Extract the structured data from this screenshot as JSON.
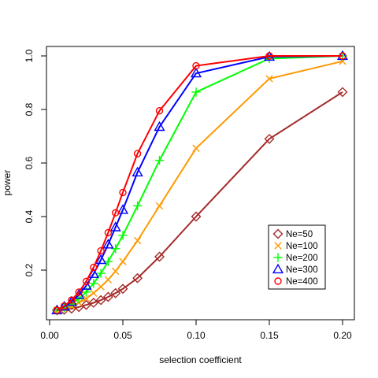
{
  "chart_data": {
    "type": "line",
    "xlabel": "selection coefficient",
    "ylabel": "power",
    "xlim": [
      0.0,
      0.2
    ],
    "ylim": [
      0.05,
      1.0
    ],
    "x_ticks": [
      0.0,
      0.05,
      0.1,
      0.15,
      0.2
    ],
    "x_tick_labels": [
      "0.00",
      "0.05",
      "0.10",
      "0.15",
      "0.20"
    ],
    "y_ticks": [
      0.2,
      0.4,
      0.6,
      0.8,
      1.0
    ],
    "y_tick_labels": [
      "0.2",
      "0.4",
      "0.6",
      "0.8",
      "1.0"
    ],
    "grid": false,
    "legend_position": "bottom-right",
    "x": [
      0.005,
      0.01,
      0.015,
      0.02,
      0.025,
      0.03,
      0.035,
      0.04,
      0.045,
      0.05,
      0.06,
      0.075,
      0.1,
      0.15,
      0.2
    ],
    "series": [
      {
        "name": "Ne=50",
        "color": "#a52a2a",
        "marker": "diamond",
        "values": [
          0.05,
          0.052,
          0.056,
          0.062,
          0.07,
          0.078,
          0.088,
          0.1,
          0.114,
          0.13,
          0.17,
          0.25,
          0.4,
          0.69,
          0.865
        ]
      },
      {
        "name": "Ne=100",
        "color": "#ff9900",
        "marker": "x",
        "values": [
          0.05,
          0.056,
          0.066,
          0.078,
          0.094,
          0.114,
          0.138,
          0.164,
          0.196,
          0.232,
          0.31,
          0.44,
          0.655,
          0.915,
          0.98
        ]
      },
      {
        "name": "Ne=200",
        "color": "#00ff00",
        "marker": "plus",
        "values": [
          0.05,
          0.06,
          0.074,
          0.093,
          0.118,
          0.15,
          0.188,
          0.232,
          0.28,
          0.33,
          0.44,
          0.61,
          0.865,
          0.99,
          1.0
        ]
      },
      {
        "name": "Ne=300",
        "color": "#0000ff",
        "marker": "triangle",
        "values": [
          0.05,
          0.064,
          0.082,
          0.108,
          0.142,
          0.186,
          0.238,
          0.296,
          0.36,
          0.425,
          0.565,
          0.735,
          0.935,
          0.997,
          1.0
        ]
      },
      {
        "name": "Ne=400",
        "color": "#ff0000",
        "marker": "circle",
        "values": [
          0.05,
          0.066,
          0.088,
          0.118,
          0.158,
          0.21,
          0.272,
          0.34,
          0.414,
          0.49,
          0.635,
          0.795,
          0.963,
          1.0,
          1.0
        ]
      }
    ]
  }
}
